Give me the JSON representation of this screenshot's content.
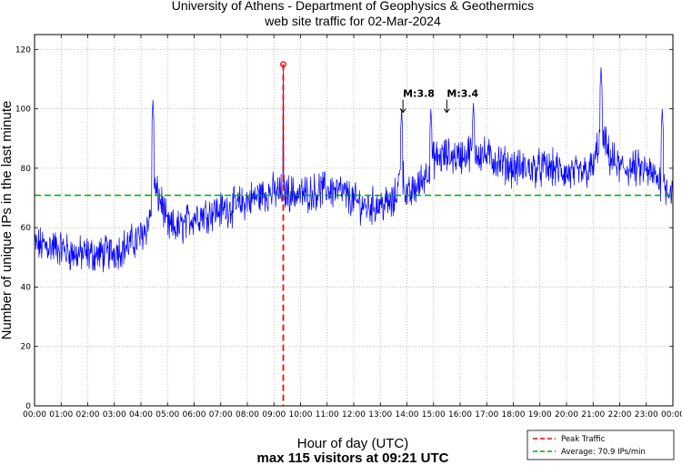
{
  "chart_data": {
    "type": "line",
    "title": "University of Athens - Department of Geophysics & Geothermics",
    "subtitle": "web site traffic for 02-Mar-2024",
    "xlabel": "Hour of day (UTC)",
    "ylabel": "Number of unique IPs in the last minute",
    "footer": "max 115 visitors at 09:21 UTC",
    "xlim_hours": [
      0,
      24
    ],
    "ylim": [
      0,
      125
    ],
    "y_ticks": [
      0,
      20,
      40,
      60,
      80,
      100,
      120
    ],
    "y_tick_labels": [
      "0",
      "20",
      "40",
      "60",
      "80",
      "100",
      "120"
    ],
    "x_tick_labels": [
      "00:00",
      "01:00",
      "02:00",
      "03:00",
      "04:00",
      "05:00",
      "06:00",
      "07:00",
      "08:00",
      "09:00",
      "10:00",
      "11:00",
      "12:00",
      "13:00",
      "14:00",
      "15:00",
      "16:00",
      "17:00",
      "18:00",
      "19:00",
      "20:00",
      "21:00",
      "22:00",
      "23:00",
      "00:00"
    ],
    "grid": true,
    "series": [
      {
        "name": "Unique IPs per minute",
        "color": "#0000ff",
        "hourly_profile": {
          "hours": [
            0,
            0.5,
            1,
            1.5,
            2,
            2.5,
            3,
            3.5,
            4,
            4.3,
            4.5,
            4.8,
            5,
            5.5,
            6,
            6.5,
            7,
            7.5,
            8,
            8.5,
            9,
            9.5,
            10,
            10.5,
            11,
            11.5,
            12,
            12.5,
            13,
            13.5,
            13.8,
            14,
            14.5,
            15,
            15.5,
            16,
            16.5,
            17,
            17.5,
            18,
            18.5,
            19,
            19.5,
            20,
            20.5,
            21,
            21.3,
            21.6,
            22,
            22.5,
            23,
            23.5,
            24
          ],
          "values": [
            54,
            54,
            53,
            51,
            51,
            51,
            52,
            54,
            57,
            62,
            73,
            68,
            60,
            60,
            64,
            65,
            66,
            67,
            69,
            71,
            72,
            72,
            71,
            72,
            73,
            72,
            69,
            67,
            68,
            68,
            80,
            70,
            75,
            83,
            84,
            84,
            86,
            84,
            82,
            80,
            80,
            80,
            80,
            78,
            78,
            80,
            92,
            84,
            80,
            80,
            79,
            76,
            72
          ]
        },
        "noise_amplitude": 5,
        "spikes": [
          {
            "hour": 4.45,
            "value": 103
          },
          {
            "hour": 13.8,
            "value": 100
          },
          {
            "hour": 14.9,
            "value": 100
          },
          {
            "hour": 16.5,
            "value": 102
          },
          {
            "hour": 21.3,
            "value": 114
          },
          {
            "hour": 23.6,
            "value": 100
          }
        ]
      }
    ],
    "peak": {
      "hour": 9.35,
      "value": 115,
      "color": "#ff0000"
    },
    "average": {
      "value": 70.9,
      "color": "#00aa00"
    },
    "annotations": [
      {
        "text": "M:3.8",
        "hour": 13.85,
        "value": 104
      },
      {
        "text": "M:3.4",
        "hour": 15.5,
        "value": 104
      }
    ],
    "legend": {
      "position": "bottom-right",
      "entries": [
        {
          "label": "Peak Traffic",
          "color": "#ff0000",
          "style": "dashed"
        },
        {
          "label": "Average: 70.9 IPs/min",
          "color": "#00aa00",
          "style": "dashed"
        }
      ]
    }
  }
}
